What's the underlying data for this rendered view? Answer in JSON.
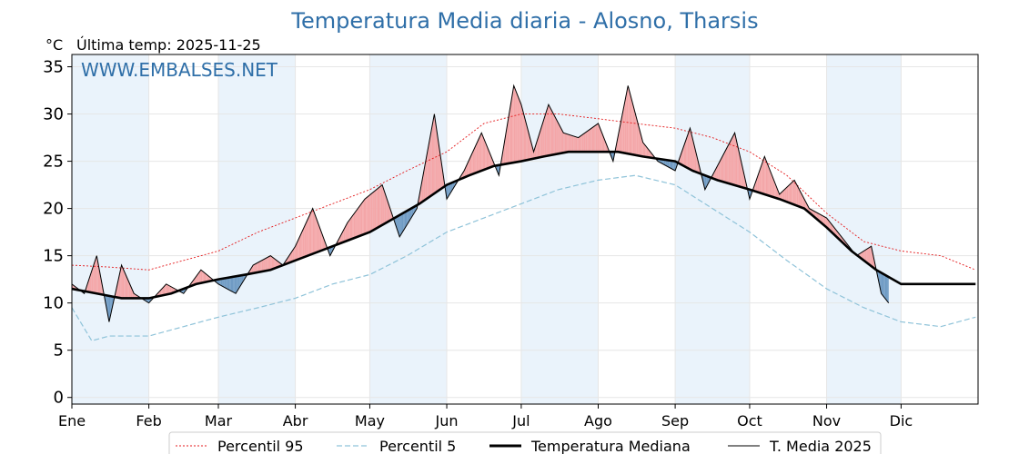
{
  "chart_data": {
    "type": "line",
    "title": "Temperatura Media diaria - Alosno, Tharsis",
    "unit_label": "°C",
    "last_temp_label": "Última temp: 2025-11-25",
    "watermark": "WWW.EMBALSES.NET",
    "ylim": [
      -0.7,
      36.3
    ],
    "xlim": [
      0,
      365
    ],
    "y_ticks": [
      0,
      5,
      10,
      15,
      20,
      25,
      30,
      35
    ],
    "months": [
      {
        "label": "Ene",
        "day": 0
      },
      {
        "label": "Feb",
        "day": 31
      },
      {
        "label": "Mar",
        "day": 59
      },
      {
        "label": "Abr",
        "day": 90
      },
      {
        "label": "May",
        "day": 120
      },
      {
        "label": "Jun",
        "day": 151
      },
      {
        "label": "Jul",
        "day": 181
      },
      {
        "label": "Ago",
        "day": 212
      },
      {
        "label": "Sep",
        "day": 243
      },
      {
        "label": "Oct",
        "day": 273
      },
      {
        "label": "Nov",
        "day": 304
      },
      {
        "label": "Dic",
        "day": 334
      }
    ],
    "shaded_months": [
      "Ene",
      "Mar",
      "May",
      "Jul",
      "Sep",
      "Nov"
    ],
    "grid": true,
    "legend_position": "bottom",
    "colors": {
      "p95": "#e41a1c",
      "p5": "#8fc3d9",
      "median": "#000000",
      "t2025": "#000000",
      "above": "#f4a6a8",
      "below": "#6f9bc4",
      "title": "#2f6fa8",
      "shade": "#eaf3fb"
    },
    "series": [
      {
        "name": "Percentil 95",
        "key": "p95",
        "x": [
          0,
          15,
          31,
          45,
          59,
          75,
          90,
          105,
          120,
          135,
          151,
          166,
          181,
          196,
          212,
          227,
          243,
          258,
          273,
          288,
          304,
          319,
          334,
          350,
          364
        ],
        "values": [
          14,
          13.8,
          13.5,
          14.5,
          15.5,
          17.5,
          19,
          20.5,
          22,
          24,
          26,
          29,
          30,
          30,
          29.5,
          29,
          28.5,
          27.5,
          26,
          23.5,
          19.5,
          16.5,
          15.5,
          15,
          13.5
        ]
      },
      {
        "name": "Percentil 5",
        "key": "p5",
        "x": [
          0,
          8,
          15,
          31,
          45,
          59,
          75,
          90,
          105,
          120,
          135,
          151,
          166,
          181,
          196,
          212,
          227,
          243,
          258,
          273,
          288,
          304,
          319,
          334,
          350,
          364
        ],
        "values": [
          9.5,
          6,
          6.5,
          6.5,
          7.5,
          8.5,
          9.5,
          10.5,
          12,
          13,
          15,
          17.5,
          19,
          20.5,
          22,
          23,
          23.5,
          22.5,
          20,
          17.5,
          14.5,
          11.5,
          9.5,
          8,
          7.5,
          8.5
        ]
      },
      {
        "name": "Temperatura Mediana",
        "key": "median",
        "x": [
          0,
          10,
          20,
          31,
          40,
          50,
          59,
          70,
          80,
          90,
          100,
          110,
          120,
          130,
          140,
          151,
          160,
          170,
          181,
          190,
          200,
          212,
          220,
          230,
          243,
          250,
          260,
          273,
          285,
          295,
          304,
          314,
          324,
          334,
          345,
          355,
          364
        ],
        "values": [
          11.5,
          11,
          10.5,
          10.5,
          11,
          12,
          12.5,
          13,
          13.5,
          14.5,
          15.5,
          16.5,
          17.5,
          19,
          20.5,
          22.5,
          23.5,
          24.5,
          25,
          25.5,
          26,
          26,
          26,
          25.5,
          25,
          24,
          23,
          22,
          21,
          20,
          18,
          15.5,
          13.5,
          12,
          12,
          12,
          12
        ]
      },
      {
        "name": "T. Media 2025",
        "key": "t2025",
        "x": [
          0,
          5,
          10,
          15,
          20,
          25,
          31,
          38,
          45,
          52,
          59,
          66,
          73,
          80,
          85,
          90,
          97,
          104,
          111,
          118,
          125,
          132,
          139,
          146,
          151,
          158,
          165,
          172,
          178,
          181,
          186,
          192,
          198,
          204,
          212,
          218,
          224,
          230,
          236,
          243,
          249,
          255,
          261,
          267,
          273,
          279,
          285,
          291,
          297,
          304,
          310,
          316,
          322,
          326,
          329
        ],
        "values": [
          12,
          11,
          15,
          8,
          14,
          11,
          10,
          12,
          11,
          13.5,
          12,
          11,
          14,
          15,
          14,
          16,
          20,
          15,
          18.5,
          21,
          22.5,
          17,
          20,
          30,
          21,
          24,
          28,
          23.5,
          33,
          31,
          26,
          31,
          28,
          27.5,
          29,
          25,
          33,
          27,
          25,
          24,
          28.5,
          22,
          25,
          28,
          21,
          25.5,
          21.5,
          23,
          20,
          19,
          17,
          15,
          16,
          11,
          10
        ]
      }
    ]
  }
}
